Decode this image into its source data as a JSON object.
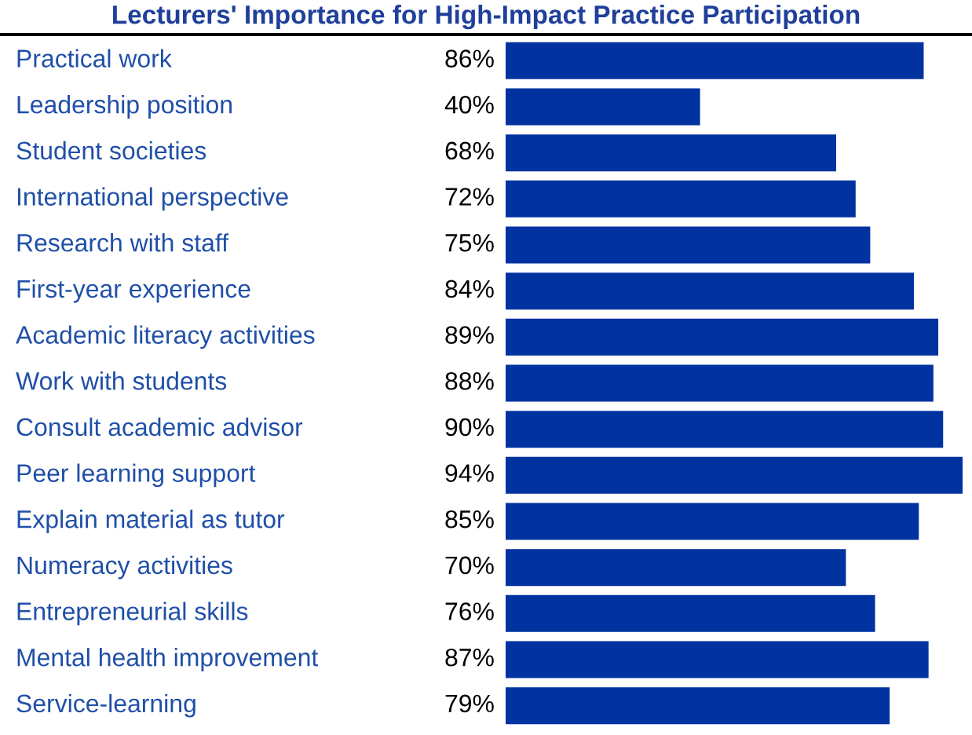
{
  "chart_data": {
    "type": "bar",
    "orientation": "horizontal",
    "title": "Lecturers' Importance for High-Impact Practice Participation",
    "categories": [
      "Practical work",
      "Leadership position",
      "Student societies",
      "International perspective",
      "Research with staff",
      "First-year experience",
      "Academic literacy activities",
      "Work with students",
      "Consult academic advisor",
      "Peer learning support",
      "Explain material as tutor",
      "Numeracy activities",
      "Entrepreneurial skills",
      "Mental health improvement",
      "Service-learning"
    ],
    "values": [
      86,
      40,
      68,
      72,
      75,
      84,
      89,
      88,
      90,
      94,
      85,
      70,
      76,
      87,
      79
    ],
    "value_labels": [
      "86%",
      "40%",
      "68%",
      "72%",
      "75%",
      "84%",
      "89%",
      "88%",
      "90%",
      "94%",
      "85%",
      "70%",
      "76%",
      "87%",
      "79%"
    ],
    "color": "#0033a0"
  }
}
